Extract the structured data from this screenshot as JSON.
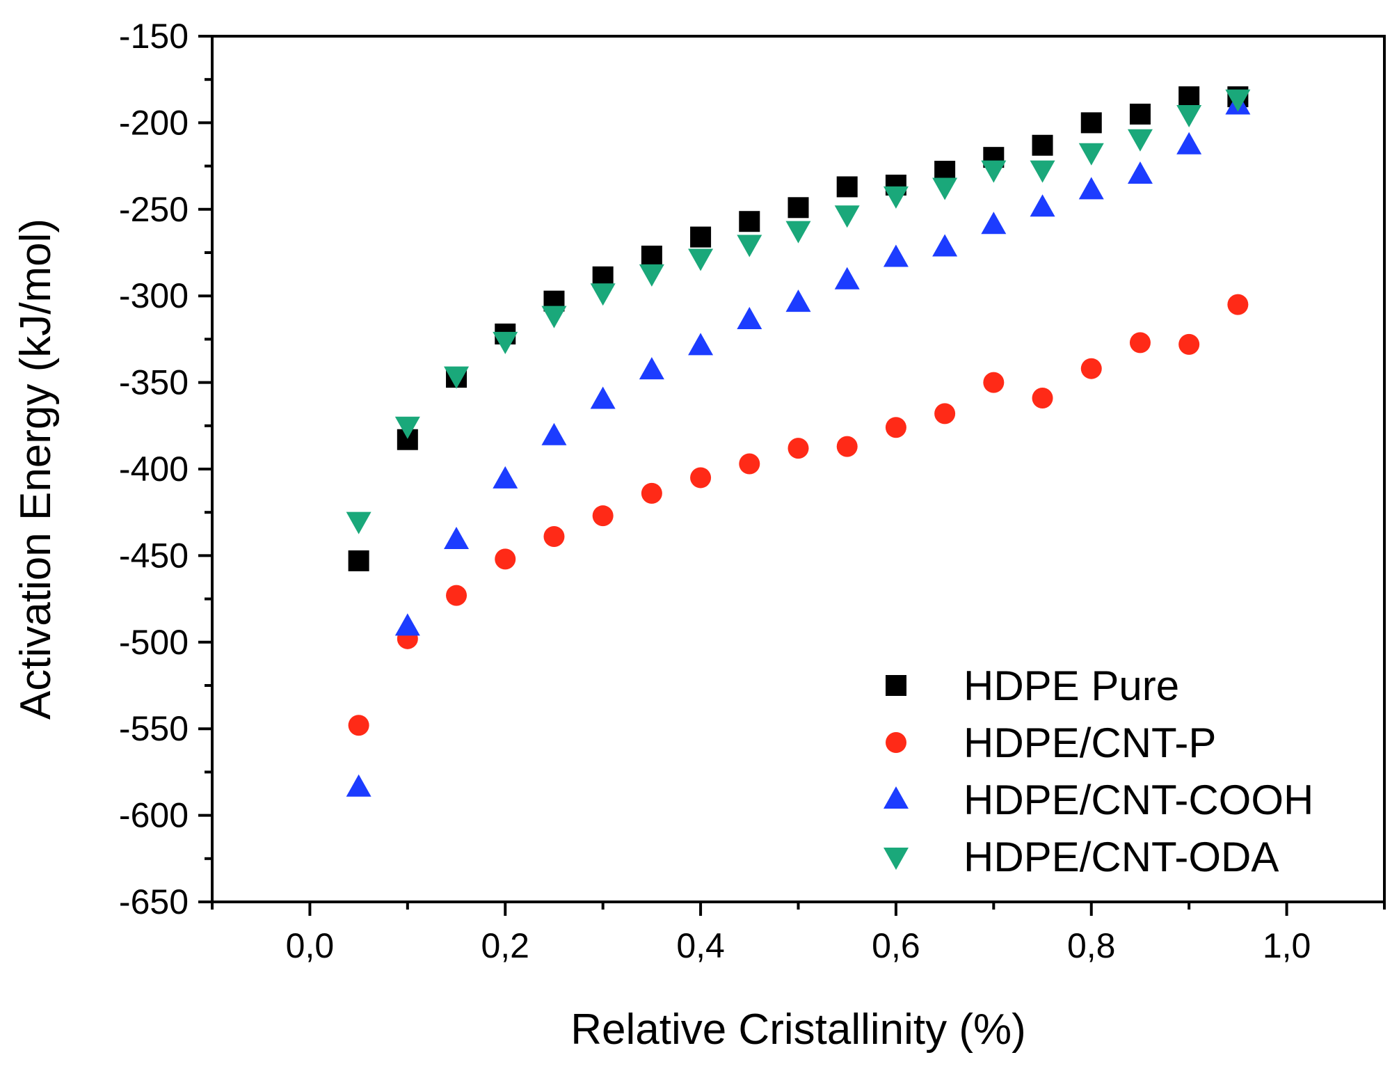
{
  "chart_data": {
    "type": "scatter",
    "title": "",
    "xlabel": "Relative Cristallinity (%)",
    "ylabel": "Activation Energy (kJ/mol)",
    "xlim": [
      -0.1,
      1.1
    ],
    "ylim": [
      -650,
      -150
    ],
    "x_ticks": [
      0.0,
      0.2,
      0.4,
      0.6,
      0.8,
      1.0
    ],
    "x_tick_labels": [
      "0,0",
      "0,2",
      "0,4",
      "0,6",
      "0,8",
      "1,0"
    ],
    "y_ticks": [
      -650,
      -600,
      -550,
      -500,
      -450,
      -400,
      -350,
      -300,
      -250,
      -200,
      -150
    ],
    "y_tick_labels": [
      "-650",
      "-600",
      "-550",
      "-500",
      "-450",
      "-400",
      "-350",
      "-300",
      "-250",
      "-200",
      "-150"
    ],
    "grid": false,
    "legend_position": "bottom-right",
    "x": [
      0.05,
      0.1,
      0.15,
      0.2,
      0.25,
      0.3,
      0.35,
      0.4,
      0.45,
      0.5,
      0.55,
      0.6,
      0.65,
      0.7,
      0.75,
      0.8,
      0.85,
      0.9,
      0.95
    ],
    "series": [
      {
        "name": "HDPE Pure",
        "marker": "square",
        "color": "#000000",
        "values": [
          -453,
          -383,
          -347,
          -322,
          -303,
          -289,
          -277,
          -266,
          -257,
          -249,
          -237,
          -236,
          -228,
          -220,
          -213,
          -200,
          -195,
          -185,
          -185
        ]
      },
      {
        "name": "HDPE/CNT-P",
        "marker": "circle",
        "color": "#ff2a17",
        "values": [
          -548,
          -498,
          -473,
          -452,
          -439,
          -427,
          -414,
          -405,
          -397,
          -388,
          -387,
          -376,
          -368,
          -350,
          -359,
          -342,
          -327,
          -328,
          -305
        ]
      },
      {
        "name": "HDPE/CNT-COOH",
        "marker": "triangle-up",
        "color": "#1c3cff",
        "values": [
          -584,
          -491,
          -441,
          -406,
          -381,
          -360,
          -343,
          -329,
          -314,
          -304,
          -291,
          -278,
          -272,
          -259,
          -249,
          -239,
          -230,
          -213,
          -190
        ]
      },
      {
        "name": "HDPE/CNT-ODA",
        "marker": "triangle-down",
        "color": "#1aa87a",
        "values": [
          -430,
          -375,
          -346,
          -326,
          -311,
          -298,
          -287,
          -278,
          -270,
          -262,
          -253,
          -242,
          -237,
          -227,
          -227,
          -217,
          -209,
          -195,
          -186
        ]
      }
    ]
  }
}
